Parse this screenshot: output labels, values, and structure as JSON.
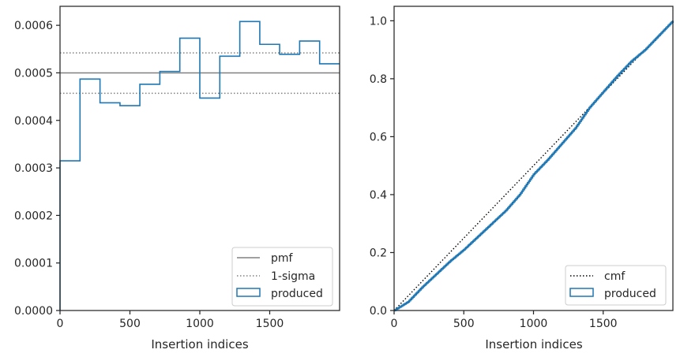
{
  "chart_data": [
    {
      "type": "histogram",
      "xlabel": "Insertion indices",
      "ylabel": "",
      "xlim": [
        0,
        2000
      ],
      "ylim": [
        0,
        0.00064
      ],
      "xticks": [
        0,
        500,
        1000,
        1500
      ],
      "xtick_labels": [
        "0",
        "500",
        "1000",
        "1500"
      ],
      "yticks": [
        0,
        0.0001,
        0.0002,
        0.0003,
        0.0004,
        0.0005,
        0.0006
      ],
      "ytick_labels": [
        "0.0000",
        "0.0001",
        "0.0002",
        "0.0003",
        "0.0004",
        "0.0005",
        "0.0006"
      ],
      "bin_edges": [
        0,
        143,
        286,
        429,
        571,
        714,
        857,
        1000,
        1143,
        1286,
        1429,
        1571,
        1714,
        1857,
        2000
      ],
      "series": [
        {
          "name": "produced",
          "values": [
            0.000315,
            0.000487,
            0.000437,
            0.000431,
            0.000476,
            0.000503,
            0.000573,
            0.000447,
            0.000535,
            0.000608,
            0.00056,
            0.000539,
            0.000567,
            0.000519
          ],
          "color": "#1f77b4",
          "style": "step"
        }
      ],
      "hlines": [
        {
          "name": "pmf",
          "y": 0.0005,
          "color": "#808080",
          "style": "solid"
        },
        {
          "name": "1-sigma",
          "y": 0.000542,
          "color": "#808080",
          "style": "dotted"
        },
        {
          "name": "1-sigma",
          "y": 0.000457,
          "color": "#808080",
          "style": "dotted"
        }
      ],
      "legend": {
        "placement": "lower right",
        "entries": [
          {
            "label": "pmf",
            "kind": "line-solid",
            "color": "#808080"
          },
          {
            "label": "1-sigma",
            "kind": "line-dotted",
            "color": "#808080"
          },
          {
            "label": "produced",
            "kind": "patch",
            "color": "#1f77b4"
          }
        ]
      },
      "grid": false
    },
    {
      "type": "line",
      "xlabel": "Insertion indices",
      "ylabel": "",
      "xlim": [
        0,
        2000
      ],
      "ylim": [
        0,
        1.05
      ],
      "xticks": [
        0,
        500,
        1000,
        1500
      ],
      "xtick_labels": [
        "0",
        "500",
        "1000",
        "1500"
      ],
      "yticks": [
        0,
        0.2,
        0.4,
        0.6,
        0.8,
        1.0
      ],
      "ytick_labels": [
        "0.0",
        "0.2",
        "0.4",
        "0.6",
        "0.8",
        "1.0"
      ],
      "series": [
        {
          "name": "cmf",
          "color": "#000000",
          "style": "dotted",
          "x": [
            0,
            2000
          ],
          "y": [
            0,
            1.0
          ]
        },
        {
          "name": "produced",
          "color": "#1f77b4",
          "style": "solid",
          "x": [
            0,
            100,
            200,
            300,
            400,
            500,
            600,
            700,
            800,
            900,
            1000,
            1100,
            1200,
            1300,
            1400,
            1500,
            1600,
            1700,
            1800,
            1900,
            2000
          ],
          "y": [
            0,
            0.03,
            0.08,
            0.125,
            0.17,
            0.21,
            0.255,
            0.3,
            0.345,
            0.4,
            0.47,
            0.52,
            0.575,
            0.63,
            0.7,
            0.755,
            0.81,
            0.86,
            0.9,
            0.95,
            1.0
          ]
        }
      ],
      "legend": {
        "placement": "lower right",
        "entries": [
          {
            "label": "cmf",
            "kind": "line-dotted",
            "color": "#000000"
          },
          {
            "label": "produced",
            "kind": "patch",
            "color": "#1f77b4"
          }
        ]
      },
      "grid": false
    }
  ]
}
